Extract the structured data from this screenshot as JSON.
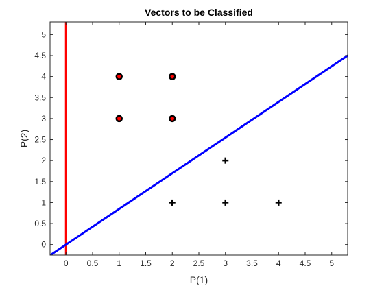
{
  "chart_data": {
    "type": "scatter",
    "title": "Vectors to be Classified",
    "xlabel": "P(1)",
    "ylabel": "P(2)",
    "xlim": [
      -0.3,
      5.3
    ],
    "ylim": [
      -0.25,
      5.3
    ],
    "xticks": [
      "0",
      "0.5",
      "1",
      "1.5",
      "2",
      "2.5",
      "3",
      "3.5",
      "4",
      "4.5",
      "5"
    ],
    "yticks": [
      "0",
      "0.5",
      "1",
      "1.5",
      "2",
      "2.5",
      "3",
      "3.5",
      "4",
      "4.5",
      "5"
    ],
    "grid": false,
    "series": [
      {
        "marker": "o",
        "color": "#000000",
        "fill": "#ff0000",
        "points": [
          [
            1,
            4
          ],
          [
            2,
            4
          ],
          [
            1,
            3
          ],
          [
            2,
            3
          ]
        ]
      },
      {
        "marker": "+",
        "color": "#000000",
        "points": [
          [
            3,
            2
          ],
          [
            2,
            1
          ],
          [
            3,
            1
          ],
          [
            4,
            1
          ]
        ]
      }
    ],
    "lines": [
      {
        "type": "vertical",
        "x": 0,
        "color": "#ff0000"
      },
      {
        "type": "line",
        "points": [
          [
            0,
            0
          ],
          [
            5.3,
            4.5
          ]
        ],
        "color": "#0000ff"
      }
    ]
  }
}
